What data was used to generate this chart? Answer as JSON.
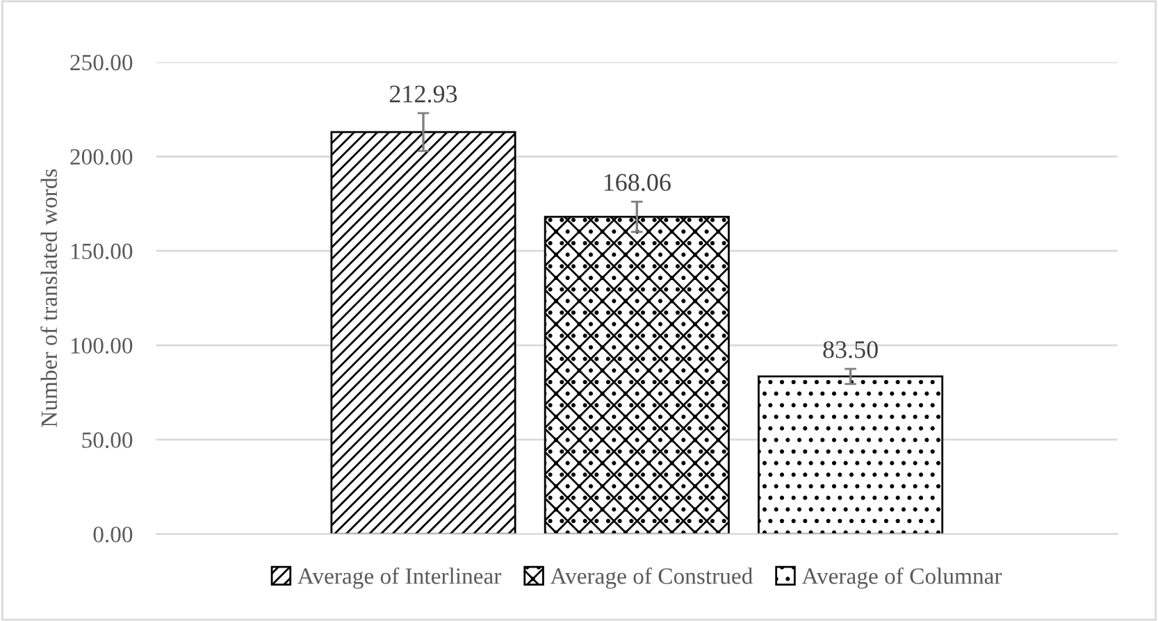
{
  "chart_data": {
    "type": "bar",
    "ylabel": "Number of translated words",
    "categories": [
      null
    ],
    "series": [
      {
        "name": "Average of Interlinear",
        "color": "#000000",
        "values": [
          212.93
        ],
        "errors": [
          10
        ],
        "value_labels": [
          "212.93"
        ]
      },
      {
        "name": "Average of Construed",
        "color": "#000000",
        "values": [
          168.06
        ],
        "errors": [
          8
        ],
        "value_labels": [
          "168.06"
        ]
      },
      {
        "name": "Average of Columnar",
        "color": "#000000",
        "values": [
          83.5
        ],
        "errors": [
          4
        ],
        "value_labels": [
          "83.50"
        ]
      }
    ],
    "ylim": [
      0,
      250
    ],
    "yticks": [
      {
        "value": 0,
        "label": "0.00"
      },
      {
        "value": 50,
        "label": "50.00"
      },
      {
        "value": 100,
        "label": "100.00"
      },
      {
        "value": 150,
        "label": "150.00"
      },
      {
        "value": 200,
        "label": "200.00"
      },
      {
        "value": 250,
        "label": "250.00"
      }
    ],
    "grid": "y",
    "legend": "bottom",
    "tick_labels": "y"
  }
}
